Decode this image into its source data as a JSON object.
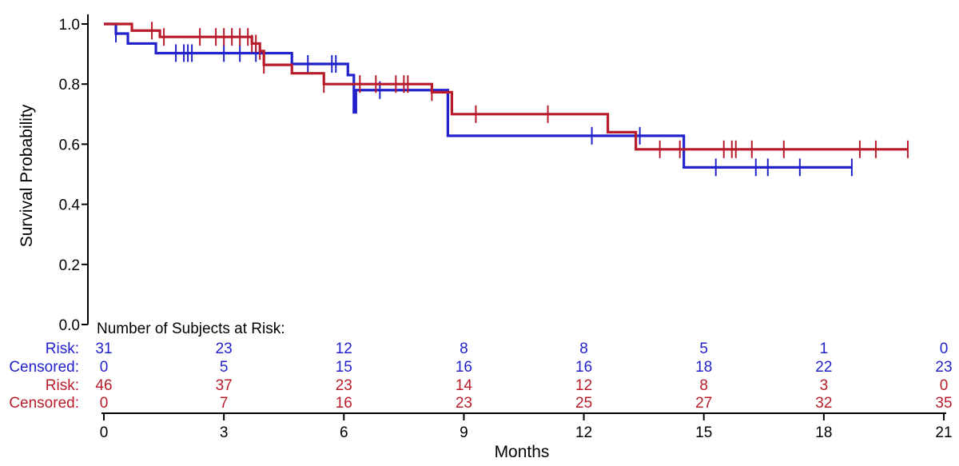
{
  "chart_data": {
    "type": "line",
    "subtype": "kaplan-meier",
    "title": "",
    "xlabel": "Months",
    "ylabel": "Survival Probability",
    "xlim": [
      0,
      21
    ],
    "ylim": [
      0,
      1.0
    ],
    "x_ticks": [
      0,
      3,
      6,
      9,
      12,
      15,
      18,
      21
    ],
    "y_ticks": [
      0.0,
      0.2,
      0.4,
      0.6,
      0.8,
      1.0
    ],
    "y_tick_labels": [
      "0.0",
      "0.2",
      "0.4",
      "0.6",
      "0.8",
      "1.0"
    ],
    "series": [
      {
        "name": "Blue arm",
        "color": "#2222cc",
        "steps": [
          [
            0,
            1.0
          ],
          [
            0.3,
            0.968
          ],
          [
            0.6,
            0.935
          ],
          [
            1.3,
            0.903
          ],
          [
            4.7,
            0.867
          ],
          [
            6.1,
            0.83
          ],
          [
            6.3,
            0.78
          ],
          [
            6.25,
            0.706
          ],
          [
            8.6,
            0.628
          ],
          [
            14.5,
            0.523
          ],
          [
            18.7,
            0.523
          ]
        ],
        "censor_times": [
          0.3,
          1.8,
          2.0,
          2.1,
          2.2,
          3.0,
          3.4,
          3.8,
          4.7,
          5.1,
          5.7,
          5.8,
          6.9,
          12.2,
          13.4,
          15.3,
          16.3,
          16.6,
          17.4,
          18.7
        ]
      },
      {
        "name": "Red arm",
        "color": "#b81c2a",
        "steps": [
          [
            0,
            1.0
          ],
          [
            0.7,
            0.978
          ],
          [
            1.4,
            0.957
          ],
          [
            3.7,
            0.935
          ],
          [
            3.9,
            0.91
          ],
          [
            4.0,
            0.864
          ],
          [
            4.7,
            0.836
          ],
          [
            5.5,
            0.8
          ],
          [
            8.2,
            0.773
          ],
          [
            8.7,
            0.7
          ],
          [
            12.6,
            0.64
          ],
          [
            13.3,
            0.583
          ],
          [
            20.1,
            0.583
          ]
        ],
        "censor_times": [
          1.2,
          1.5,
          2.4,
          2.8,
          3.0,
          3.2,
          3.4,
          3.6,
          3.7,
          3.8,
          3.9,
          4.0,
          5.5,
          6.4,
          6.8,
          7.3,
          7.5,
          7.6,
          8.2,
          9.3,
          11.1,
          13.9,
          14.4,
          15.5,
          15.7,
          15.8,
          16.2,
          17.0,
          18.9,
          19.3,
          20.1
        ]
      }
    ],
    "risk_table": {
      "title": "Number of Subjects at Risk:",
      "times": [
        0,
        3,
        6,
        9,
        12,
        15,
        18,
        21
      ],
      "rows": [
        {
          "label": "Risk:",
          "color": "#2222cc",
          "values": [
            "31",
            "23",
            "12",
            "8",
            "8",
            "5",
            "1",
            "0"
          ]
        },
        {
          "label": "Censored:",
          "color": "#2222cc",
          "values": [
            "0",
            "5",
            "15",
            "16",
            "16",
            "18",
            "22",
            "23"
          ]
        },
        {
          "label": "Risk:",
          "color": "#b81c2a",
          "values": [
            "46",
            "37",
            "23",
            "14",
            "12",
            "8",
            "3",
            "0"
          ]
        },
        {
          "label": "Censored:",
          "color": "#b81c2a",
          "values": [
            "0",
            "7",
            "16",
            "23",
            "25",
            "27",
            "32",
            "35"
          ]
        }
      ]
    }
  }
}
